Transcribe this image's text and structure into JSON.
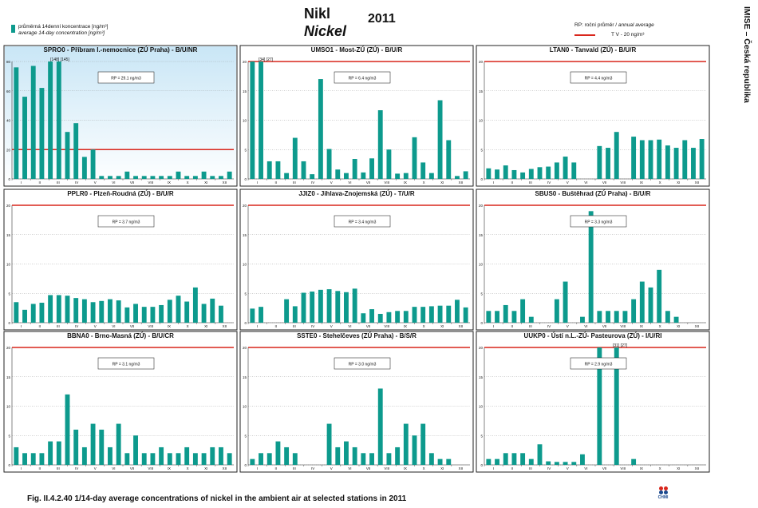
{
  "header": {
    "title_cz": "Nikl",
    "title_en": "Nickel",
    "year": "2011",
    "legend_cz": "průměrná 14denní koncentrace [ng/m³]",
    "legend_en": "average 14-day concentration [ng/m³]",
    "rp_legend_cz": "RP: roční průměr /",
    "rp_legend_en": "annual average",
    "tv_label": "T V  - 20 ng/m³",
    "side_label": "IMISE – Česká republika",
    "logo_text": "CHMI"
  },
  "caption": "Fig. II.4.2.40  1/14-day average concentrations of nickel in the ambient air at selected stations in 2011",
  "colors": {
    "bar": "#0d9a8d",
    "limit": "#d9261c",
    "highlight_bg": "#c9e6f6"
  },
  "chart_data": [
    {
      "type": "bar",
      "title": "SPRO0 - Příbram I.-nemocnice (ZÚ Praha) - B/U/NR",
      "highlight": true,
      "ylim": [
        0,
        80
      ],
      "yticks": [
        0,
        20,
        40,
        60,
        80
      ],
      "limit": 20,
      "rp": "RP = 29.1 ng/m3",
      "annotation": "[148] [145]",
      "months": [
        "I",
        "II",
        "III",
        "IV",
        "V",
        "VI",
        "VII",
        "VIII",
        "IX",
        "X",
        "XI",
        "XII"
      ],
      "values": [
        76,
        56,
        77,
        62,
        80,
        80,
        32,
        38,
        15,
        20,
        2,
        2,
        2,
        5,
        2,
        2,
        2,
        2,
        2,
        5,
        2,
        2,
        5,
        2,
        2,
        5
      ]
    },
    {
      "type": "bar",
      "title": "UMSO1 - Most-ZÚ (ZÚ) - B/U/R",
      "highlight": false,
      "ylim": [
        0,
        20
      ],
      "yticks": [
        0,
        5,
        10,
        15,
        20
      ],
      "limit": 20,
      "rp": "RP = 6.4 ng/m3",
      "annotation": "[34] [27]",
      "months": [
        "I",
        "II",
        "III",
        "IV",
        "V",
        "VI",
        "VII",
        "VIII",
        "IX",
        "X",
        "XI",
        "XII"
      ],
      "values": [
        20,
        20,
        3,
        3,
        1,
        7,
        3,
        0.8,
        17,
        5.1,
        1.6,
        1,
        3.4,
        1.1,
        3.5,
        11.7,
        5,
        0.9,
        1,
        7.1,
        2.8,
        1,
        13.4,
        6.6,
        0.5,
        1.3
      ]
    },
    {
      "type": "bar",
      "title": "LTAN0 - Tanvald (ZÚ) - B/U/R",
      "highlight": false,
      "ylim": [
        0,
        20
      ],
      "yticks": [
        0,
        5,
        10,
        15,
        20
      ],
      "limit": 20,
      "rp": "RP = 4.4 ng/m3",
      "annotation": "",
      "months": [
        "I",
        "II",
        "III",
        "IV",
        "V",
        "VI",
        "VII",
        "VIII",
        "IX",
        "X",
        "XI",
        "XII"
      ],
      "values": [
        1.8,
        1.6,
        2.3,
        1.5,
        1.1,
        1.7,
        2,
        2.1,
        2.8,
        3.8,
        2.8,
        null,
        null,
        5.6,
        5.3,
        8,
        null,
        7.2,
        6.6,
        6.6,
        6.7,
        5.7,
        5.3,
        6.6,
        5.3,
        6.8
      ]
    },
    {
      "type": "bar",
      "title": "PPLR0 - Plzeň-Roudná (ZÚ) - B/U/R",
      "highlight": false,
      "ylim": [
        0,
        20
      ],
      "yticks": [
        0,
        5,
        10,
        15,
        20
      ],
      "limit": 20,
      "rp": "RP = 3.7 ng/m3",
      "annotation": "",
      "months": [
        "I",
        "II",
        "III",
        "IV",
        "V",
        "VI",
        "VII",
        "VIII",
        "IX",
        "X",
        "XI",
        "XII"
      ],
      "values": [
        3.5,
        2.2,
        3.2,
        3.4,
        4.7,
        4.7,
        4.6,
        4.2,
        4,
        3.5,
        3.7,
        4,
        3.8,
        2.6,
        3.2,
        2.7,
        2.7,
        3,
        3.9,
        4.6,
        3.6,
        6,
        3.2,
        4.1,
        2.9,
        null
      ]
    },
    {
      "type": "bar",
      "title": "JJIZ0 - Jihlava-Znojemská (ZÚ) - T/U/R",
      "highlight": false,
      "ylim": [
        0,
        20
      ],
      "yticks": [
        0,
        5,
        10,
        15,
        20
      ],
      "limit": 20,
      "rp": "RP = 3.4 ng/m3",
      "annotation": "",
      "months": [
        "I",
        "II",
        "III",
        "IV",
        "V",
        "VI",
        "VII",
        "VIII",
        "IX",
        "X",
        "XI",
        "XII"
      ],
      "values": [
        2.4,
        2.7,
        null,
        null,
        4,
        2.8,
        5.1,
        5.3,
        5.6,
        5.7,
        5.4,
        5.2,
        5.8,
        1.6,
        2.3,
        1.5,
        1.8,
        2,
        2,
        2.7,
        2.7,
        2.8,
        2.9,
        2.9,
        3.9,
        2.6
      ]
    },
    {
      "type": "bar",
      "title": "SBUS0 - Buštěhrad (ZÚ Praha) - B/U/R",
      "highlight": false,
      "ylim": [
        0,
        20
      ],
      "yticks": [
        0,
        5,
        10,
        15,
        20
      ],
      "limit": 20,
      "rp": "RP = 3.3 ng/m3",
      "annotation": "",
      "months": [
        "I",
        "II",
        "III",
        "IV",
        "V",
        "VI",
        "VII",
        "VIII",
        "IX",
        "X",
        "XI",
        "XII"
      ],
      "values": [
        2,
        2,
        3,
        2,
        4,
        1,
        null,
        null,
        4,
        7,
        null,
        1,
        19,
        2,
        2,
        2,
        2,
        4,
        7,
        6,
        9,
        2,
        1,
        null,
        null,
        null
      ]
    },
    {
      "type": "bar",
      "title": "BBNA0 - Brno-Masná (ZÚ) - B/U/CR",
      "highlight": false,
      "ylim": [
        0,
        20
      ],
      "yticks": [
        0,
        5,
        10,
        15,
        20
      ],
      "limit": 20,
      "rp": "RP = 3.1 ng/m3",
      "annotation": "",
      "months": [
        "I",
        "II",
        "III",
        "IV",
        "V",
        "VI",
        "VII",
        "VIII",
        "IX",
        "X",
        "XI",
        "XII"
      ],
      "values": [
        3,
        2,
        2,
        2,
        4,
        4,
        12,
        6,
        3,
        7,
        6,
        3,
        7,
        2,
        5,
        2,
        2,
        3,
        2,
        2,
        3,
        2,
        2,
        3,
        3,
        2
      ]
    },
    {
      "type": "bar",
      "title": "SSTE0 - Stehelčeves (ZÚ Praha) - B/S/R",
      "highlight": false,
      "ylim": [
        0,
        20
      ],
      "yticks": [
        0,
        5,
        10,
        15,
        20
      ],
      "limit": 20,
      "rp": "RP = 3.0 ng/m3",
      "annotation": "",
      "months": [
        "I",
        "II",
        "III",
        "IV",
        "V",
        "VI",
        "VII",
        "VIII",
        "IX",
        "X",
        "XI",
        "XII"
      ],
      "values": [
        1,
        2,
        2,
        4,
        3,
        2,
        null,
        null,
        null,
        7,
        3,
        4,
        3,
        2,
        2,
        13,
        2,
        3,
        7,
        5,
        7,
        2,
        1,
        1,
        null,
        null
      ]
    },
    {
      "type": "bar",
      "title": "UUKP0 - Ústí n.L.-ZÚ- Pasteurova (ZÚ) - I/U/RI",
      "highlight": false,
      "ylim": [
        0,
        20
      ],
      "yticks": [
        0,
        5,
        10,
        15,
        20
      ],
      "limit": 20,
      "rp": "RP = 2.9 ng/m3",
      "annotation": "[31] [27]",
      "months": [
        "I",
        "II",
        "III",
        "IV",
        "V",
        "VI",
        "VII",
        "VIII",
        "IX",
        "X",
        "XI",
        "XII"
      ],
      "values": [
        1,
        1,
        2,
        2,
        2,
        1,
        3.5,
        0.6,
        0.5,
        0.5,
        0.5,
        1.8,
        null,
        20,
        null,
        20,
        null,
        1,
        null,
        null,
        null,
        null,
        null,
        null,
        null,
        null
      ]
    }
  ]
}
